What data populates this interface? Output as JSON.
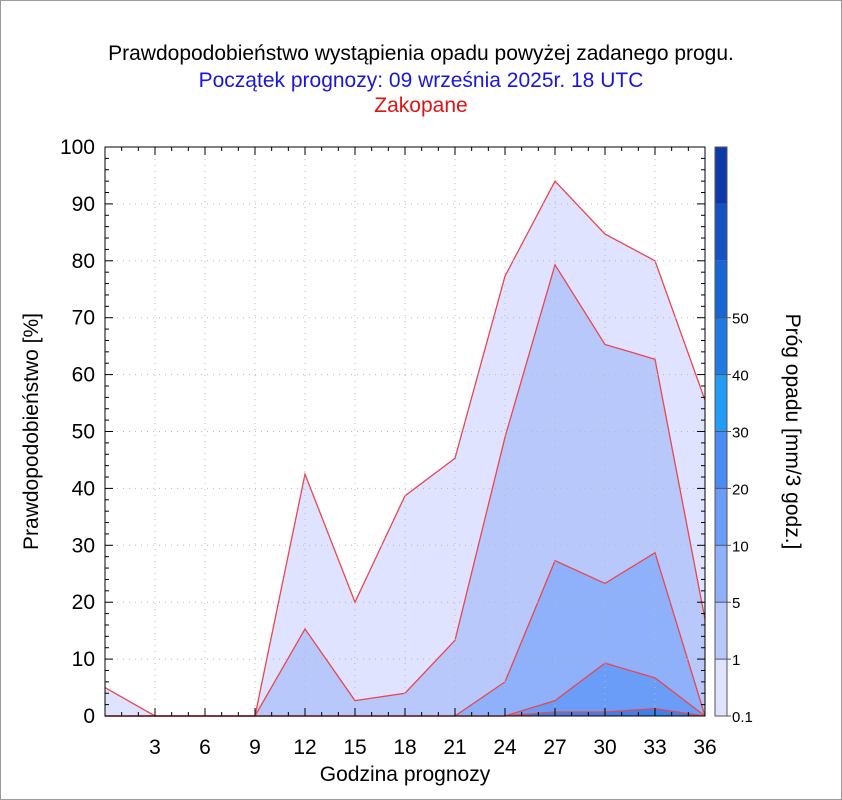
{
  "header": {
    "title": "Prawdopodobieństwo wystąpienia opadu powyżej zadanego progu.",
    "subtitle": "Początek prognozy: 09 września 2025r. 18 UTC",
    "location": "Zakopane"
  },
  "colors": {
    "title": "#000000",
    "subtitle": "#1a14e0",
    "location": "#e01414",
    "outline": "#e8474f",
    "grid": "#b8b8b8"
  },
  "chart_data": {
    "type": "area",
    "xlabel": "Godzina prognozy",
    "ylabel": "Prawdopodobieństwo [%]",
    "xlim": [
      0,
      36
    ],
    "ylim": [
      0,
      100
    ],
    "x_ticks": [
      3,
      6,
      9,
      12,
      15,
      18,
      21,
      24,
      27,
      30,
      33,
      36
    ],
    "y_ticks": [
      0,
      10,
      20,
      30,
      40,
      50,
      60,
      70,
      80,
      90,
      100
    ],
    "grid": true,
    "x": [
      0,
      3,
      6,
      9,
      12,
      15,
      18,
      21,
      24,
      27,
      30,
      33,
      36
    ],
    "series": [
      {
        "threshold": 0.1,
        "color": "#dfe3ff",
        "values": [
          5,
          0,
          0,
          0,
          42.5,
          20,
          38.7,
          45.3,
          77.3,
          94,
          84.7,
          80,
          55.5
        ]
      },
      {
        "threshold": 1,
        "color": "#b9c8fb",
        "values": [
          0,
          0,
          0,
          0,
          15.3,
          2.7,
          4,
          13.3,
          49,
          79.3,
          65.3,
          62.7,
          17
        ]
      },
      {
        "threshold": 5,
        "color": "#8fb0fb",
        "values": [
          0,
          0,
          0,
          0,
          0,
          0,
          0,
          0,
          6,
          27.3,
          23.3,
          28.7,
          0
        ]
      },
      {
        "threshold": 10,
        "color": "#6a9df8",
        "values": [
          0,
          0,
          0,
          0,
          0,
          0,
          0,
          0,
          0,
          2.7,
          9.3,
          6.7,
          0
        ]
      },
      {
        "threshold": 20,
        "color": "#3f7fe8",
        "values": [
          0,
          0,
          0,
          0,
          0,
          0,
          0,
          0,
          0,
          0.7,
          0.7,
          1.3,
          0
        ]
      }
    ],
    "colorbar": {
      "label": "Próg opadu [mm/3 godz.]",
      "tick_labels": [
        "0.1",
        "1",
        "5",
        "10",
        "20",
        "30",
        "40",
        "50"
      ],
      "colors": [
        "#dfe3ff",
        "#b9c8fb",
        "#8fb0fb",
        "#6a9df8",
        "#4a8cf2",
        "#239cf5",
        "#1f7ae2",
        "#1865d4",
        "#1653c2",
        "#0d3aa6"
      ]
    }
  }
}
